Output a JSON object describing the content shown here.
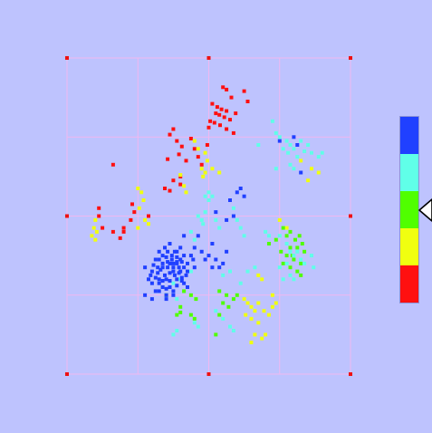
{
  "chart_data": {
    "type": "scatter",
    "title": "",
    "xlabel": "",
    "ylabel": "",
    "xlim": [
      0,
      4
    ],
    "ylim": [
      0,
      4
    ],
    "grid": true,
    "grid_color": "#f0b8f0",
    "corner_marker_color": "#ee1111",
    "background": "#bec3fe",
    "colorbar": {
      "colors": [
        "#2040ff",
        "#60ffe8",
        "#50ff00",
        "#f0ff10",
        "#ff1010"
      ],
      "pointer_level": 2.5
    },
    "series": [
      {
        "color": "#ff1010",
        "points": [
          [
            2.2,
            3.63
          ],
          [
            2.25,
            3.6
          ],
          [
            2.5,
            3.58
          ],
          [
            2.32,
            3.5
          ],
          [
            2.55,
            3.45
          ],
          [
            2.05,
            3.42
          ],
          [
            2.12,
            3.38
          ],
          [
            2.18,
            3.35
          ],
          [
            2.25,
            3.33
          ],
          [
            2.38,
            3.3
          ],
          [
            2.1,
            3.3
          ],
          [
            2.15,
            3.28
          ],
          [
            2.22,
            3.25
          ],
          [
            2.3,
            3.22
          ],
          [
            2.02,
            3.2
          ],
          [
            2.08,
            3.18
          ],
          [
            2.16,
            3.15
          ],
          [
            2.0,
            3.12
          ],
          [
            2.25,
            3.1
          ],
          [
            2.35,
            3.05
          ],
          [
            1.5,
            3.1
          ],
          [
            1.45,
            3.03
          ],
          [
            1.55,
            2.95
          ],
          [
            1.75,
            2.98
          ],
          [
            1.62,
            2.88
          ],
          [
            1.8,
            2.85
          ],
          [
            1.98,
            2.9
          ],
          [
            1.85,
            2.75
          ],
          [
            1.58,
            2.78
          ],
          [
            1.68,
            2.7
          ],
          [
            1.42,
            2.72
          ],
          [
            1.9,
            2.65
          ],
          [
            0.65,
            2.65
          ],
          [
            1.6,
            2.5
          ],
          [
            1.5,
            2.45
          ],
          [
            1.6,
            2.4
          ],
          [
            1.45,
            2.32
          ],
          [
            1.38,
            2.35
          ],
          [
            0.92,
            2.15
          ],
          [
            0.95,
            2.05
          ],
          [
            1.15,
            2.0
          ],
          [
            0.9,
            1.95
          ],
          [
            0.45,
            2.1
          ],
          [
            0.45,
            2.0
          ],
          [
            0.5,
            1.85
          ],
          [
            0.65,
            1.8
          ],
          [
            0.8,
            1.8
          ],
          [
            0.75,
            1.72
          ],
          [
            0.8,
            1.85
          ]
        ]
      },
      {
        "color": "#f0ff10",
        "points": [
          [
            1.8,
            2.95
          ],
          [
            1.85,
            2.85
          ],
          [
            1.95,
            2.8
          ],
          [
            1.98,
            2.7
          ],
          [
            1.9,
            2.6
          ],
          [
            1.95,
            2.55
          ],
          [
            1.92,
            2.5
          ],
          [
            2.05,
            2.6
          ],
          [
            2.15,
            2.55
          ],
          [
            1.6,
            2.52
          ],
          [
            1.65,
            2.38
          ],
          [
            1.68,
            2.3
          ],
          [
            1.0,
            2.35
          ],
          [
            1.05,
            2.3
          ],
          [
            1.08,
            2.2
          ],
          [
            1.02,
            2.1
          ],
          [
            1.1,
            1.95
          ],
          [
            1.15,
            1.9
          ],
          [
            1.0,
            1.85
          ],
          [
            0.4,
            1.95
          ],
          [
            0.38,
            1.85
          ],
          [
            0.42,
            1.8
          ],
          [
            0.35,
            1.75
          ],
          [
            0.4,
            1.7
          ],
          [
            3.45,
            2.6
          ],
          [
            3.55,
            2.55
          ],
          [
            3.4,
            2.45
          ],
          [
            3.3,
            2.7
          ],
          [
            3.0,
            1.95
          ],
          [
            3.1,
            1.85
          ],
          [
            2.7,
            1.25
          ],
          [
            2.75,
            1.2
          ],
          [
            2.5,
            0.95
          ],
          [
            2.55,
            0.9
          ],
          [
            2.6,
            0.85
          ],
          [
            2.65,
            0.8
          ],
          [
            2.7,
            0.9
          ],
          [
            2.52,
            0.75
          ],
          [
            2.6,
            0.7
          ],
          [
            2.7,
            0.65
          ],
          [
            2.78,
            0.8
          ],
          [
            2.85,
            0.75
          ],
          [
            2.9,
            0.85
          ],
          [
            2.95,
            0.9
          ],
          [
            2.65,
            0.5
          ],
          [
            2.75,
            0.45
          ],
          [
            2.8,
            0.5
          ],
          [
            2.6,
            0.4
          ],
          [
            2.9,
            1.0
          ]
        ]
      },
      {
        "color": "#50ff00",
        "points": [
          [
            3.05,
            1.85
          ],
          [
            3.1,
            1.75
          ],
          [
            3.15,
            1.8
          ],
          [
            3.22,
            1.7
          ],
          [
            3.28,
            1.75
          ],
          [
            3.32,
            1.65
          ],
          [
            3.35,
            1.55
          ],
          [
            3.3,
            1.4
          ],
          [
            3.2,
            1.45
          ],
          [
            3.1,
            1.5
          ],
          [
            3.02,
            1.55
          ],
          [
            3.15,
            1.6
          ],
          [
            3.25,
            1.6
          ],
          [
            3.05,
            1.4
          ],
          [
            3.15,
            1.35
          ],
          [
            2.95,
            1.7
          ],
          [
            2.85,
            1.65
          ],
          [
            3.25,
            1.3
          ],
          [
            3.3,
            1.25
          ],
          [
            3.18,
            1.5
          ],
          [
            2.15,
            1.05
          ],
          [
            2.25,
            1.0
          ],
          [
            2.35,
            0.95
          ],
          [
            2.2,
            0.9
          ],
          [
            2.15,
            0.75
          ],
          [
            2.28,
            0.85
          ],
          [
            2.4,
            1.0
          ],
          [
            1.65,
            1.05
          ],
          [
            1.75,
            1.0
          ],
          [
            1.82,
            0.95
          ],
          [
            1.6,
            0.85
          ],
          [
            1.55,
            0.75
          ],
          [
            1.6,
            0.78
          ],
          [
            1.8,
            0.7
          ],
          [
            1.75,
            0.75
          ],
          [
            2.1,
            0.5
          ],
          [
            1.35,
            1.1
          ],
          [
            1.4,
            1.0
          ]
        ]
      },
      {
        "color": "#60ffe8",
        "points": [
          [
            2.9,
            3.2
          ],
          [
            2.95,
            3.05
          ],
          [
            3.0,
            3.0
          ],
          [
            3.1,
            2.95
          ],
          [
            3.15,
            2.9
          ],
          [
            3.05,
            2.85
          ],
          [
            3.12,
            2.8
          ],
          [
            3.2,
            2.85
          ],
          [
            3.25,
            2.75
          ],
          [
            3.35,
            2.82
          ],
          [
            3.45,
            2.8
          ],
          [
            3.55,
            2.75
          ],
          [
            3.6,
            2.8
          ],
          [
            3.3,
            2.95
          ],
          [
            3.4,
            2.9
          ],
          [
            2.7,
            2.9
          ],
          [
            2.95,
            2.6
          ],
          [
            3.2,
            2.6
          ],
          [
            3.15,
            2.65
          ],
          [
            2.0,
            2.3
          ],
          [
            1.95,
            2.25
          ],
          [
            2.0,
            2.2
          ],
          [
            2.05,
            2.25
          ],
          [
            1.95,
            2.05
          ],
          [
            1.9,
            1.95
          ],
          [
            1.92,
            1.9
          ],
          [
            2.1,
            1.95
          ],
          [
            2.15,
            1.85
          ],
          [
            2.35,
            2.1
          ],
          [
            2.4,
            1.95
          ],
          [
            1.85,
            2.0
          ],
          [
            1.75,
            1.8
          ],
          [
            1.8,
            1.7
          ],
          [
            2.45,
            1.85
          ],
          [
            2.5,
            1.75
          ],
          [
            2.8,
            1.8
          ],
          [
            2.85,
            1.75
          ],
          [
            3.0,
            1.75
          ],
          [
            3.1,
            1.65
          ],
          [
            3.15,
            1.55
          ],
          [
            3.2,
            1.5
          ],
          [
            3.25,
            1.55
          ],
          [
            3.3,
            1.45
          ],
          [
            3.35,
            1.4
          ],
          [
            3.1,
            1.4
          ],
          [
            3.0,
            1.35
          ],
          [
            3.15,
            1.25
          ],
          [
            3.05,
            1.2
          ],
          [
            3.45,
            1.5
          ],
          [
            3.48,
            1.35
          ],
          [
            3.2,
            1.2
          ],
          [
            2.55,
            1.3
          ],
          [
            2.65,
            1.35
          ],
          [
            2.45,
            1.15
          ],
          [
            2.3,
            1.3
          ],
          [
            2.2,
            1.25
          ],
          [
            1.75,
            1.3
          ],
          [
            1.6,
            1.2
          ],
          [
            1.5,
            1.15
          ],
          [
            1.55,
            0.95
          ],
          [
            2.1,
            0.8
          ],
          [
            2.2,
            0.7
          ],
          [
            1.8,
            0.65
          ],
          [
            1.85,
            0.6
          ],
          [
            1.55,
            0.55
          ],
          [
            1.5,
            0.5
          ],
          [
            2.3,
            0.6
          ],
          [
            2.35,
            0.55
          ]
        ]
      },
      {
        "color": "#2040ff",
        "points": [
          [
            3.0,
            2.95
          ],
          [
            3.2,
            3.0
          ],
          [
            3.25,
            2.9
          ],
          [
            3.3,
            2.55
          ],
          [
            2.45,
            2.35
          ],
          [
            2.5,
            2.25
          ],
          [
            2.4,
            2.3
          ],
          [
            2.3,
            2.2
          ],
          [
            2.35,
            2.0
          ],
          [
            2.25,
            1.95
          ],
          [
            2.1,
            2.05
          ],
          [
            1.65,
            1.75
          ],
          [
            1.85,
            1.75
          ],
          [
            1.8,
            1.6
          ],
          [
            1.9,
            1.55
          ],
          [
            2.0,
            1.5
          ],
          [
            2.1,
            1.45
          ],
          [
            2.05,
            1.65
          ],
          [
            1.95,
            1.45
          ],
          [
            1.78,
            1.45
          ],
          [
            2.25,
            1.55
          ],
          [
            2.2,
            1.4
          ],
          [
            2.15,
            1.35
          ],
          [
            2.05,
            1.35
          ],
          [
            1.75,
            1.5
          ],
          [
            1.55,
            1.4
          ],
          [
            1.65,
            1.35
          ],
          [
            1.7,
            1.3
          ],
          [
            1.8,
            1.35
          ],
          [
            1.5,
            1.3
          ],
          [
            1.45,
            1.4
          ],
          [
            1.35,
            1.35
          ],
          [
            1.3,
            1.2
          ],
          [
            1.4,
            1.2
          ],
          [
            1.55,
            1.2
          ],
          [
            1.58,
            1.28
          ],
          [
            1.62,
            1.22
          ],
          [
            1.65,
            1.15
          ],
          [
            1.7,
            1.1
          ],
          [
            1.45,
            1.1
          ],
          [
            1.35,
            1.1
          ],
          [
            1.3,
            1.05
          ],
          [
            1.4,
            1.0
          ],
          [
            1.5,
            1.0
          ],
          [
            1.2,
            1.3
          ],
          [
            1.1,
            1.35
          ],
          [
            1.25,
            1.45
          ],
          [
            1.3,
            1.55
          ],
          [
            1.38,
            1.6
          ],
          [
            1.45,
            1.65
          ],
          [
            1.52,
            1.55
          ],
          [
            1.6,
            1.6
          ],
          [
            1.42,
            1.55
          ],
          [
            1.48,
            1.45
          ],
          [
            1.55,
            1.48
          ],
          [
            1.4,
            1.48
          ],
          [
            1.35,
            1.4
          ],
          [
            1.28,
            1.28
          ],
          [
            1.32,
            1.32
          ],
          [
            1.25,
            1.22
          ],
          [
            1.2,
            1.15
          ],
          [
            1.6,
            1.45
          ],
          [
            1.58,
            1.35
          ],
          [
            1.62,
            1.42
          ],
          [
            1.5,
            1.35
          ],
          [
            1.52,
            1.25
          ],
          [
            1.45,
            1.28
          ],
          [
            1.42,
            1.35
          ],
          [
            1.38,
            1.25
          ],
          [
            1.35,
            1.18
          ],
          [
            1.3,
            1.15
          ],
          [
            1.45,
            1.18
          ],
          [
            1.55,
            1.12
          ],
          [
            1.5,
            1.05
          ],
          [
            1.4,
            1.08
          ],
          [
            1.25,
            1.05
          ],
          [
            1.18,
            1.25
          ],
          [
            1.15,
            1.2
          ],
          [
            1.22,
            1.38
          ],
          [
            1.3,
            1.45
          ],
          [
            1.35,
            1.5
          ],
          [
            1.48,
            1.5
          ],
          [
            1.55,
            1.55
          ],
          [
            1.65,
            1.5
          ],
          [
            1.7,
            1.4
          ],
          [
            1.6,
            1.3
          ],
          [
            1.68,
            1.25
          ],
          [
            1.62,
            1.18
          ],
          [
            1.42,
            1.42
          ],
          [
            1.5,
            1.4
          ],
          [
            1.55,
            1.42
          ],
          [
            1.28,
            1.35
          ],
          [
            1.1,
            1.0
          ],
          [
            1.4,
            0.95
          ],
          [
            1.2,
            0.95
          ]
        ]
      }
    ]
  }
}
